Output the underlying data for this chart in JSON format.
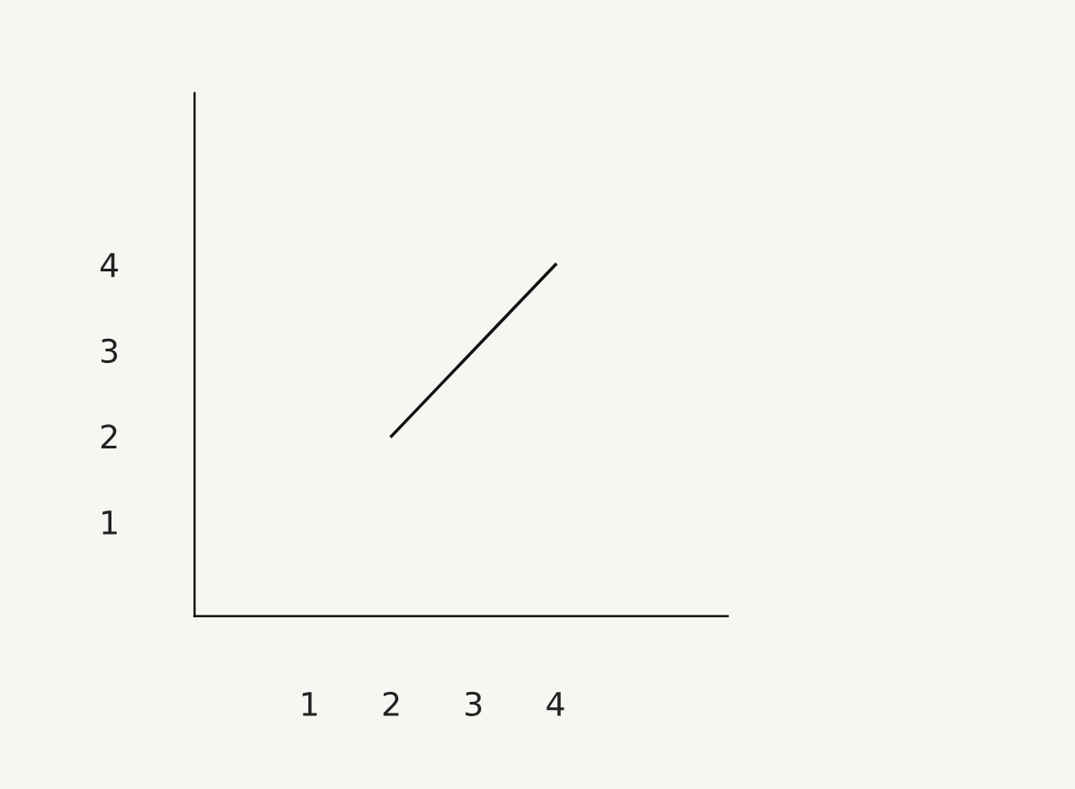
{
  "chart_data": {
    "type": "line",
    "x": [
      2,
      4
    ],
    "values": [
      2,
      4
    ],
    "color": "#111111",
    "xlim": [
      -0.4,
      6.1
    ],
    "ylim": [
      -0.1,
      6
    ],
    "xticks": [
      1,
      2,
      3,
      4
    ],
    "yticks": [
      1,
      2,
      3,
      4
    ],
    "grid": false,
    "legend": false,
    "marker": "none",
    "line_style": "solid"
  }
}
